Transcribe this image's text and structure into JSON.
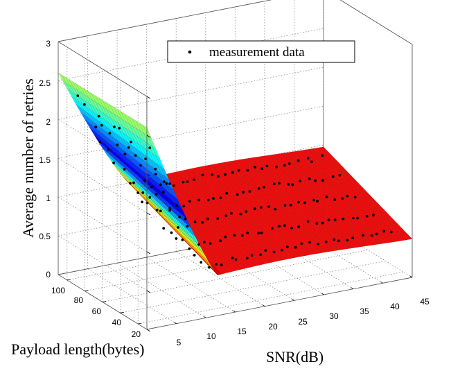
{
  "chart_data": {
    "type": "surface3d",
    "title": "",
    "zlabel": "Average number of retries",
    "xlabel": "SNR(dB)",
    "ylabel": "Payload length(bytes)",
    "snr_ticks": [
      "5",
      "10",
      "15",
      "20",
      "25",
      "30",
      "35",
      "40",
      "45"
    ],
    "payload_ticks": [
      "20",
      "40",
      "60",
      "80",
      "100"
    ],
    "retry_ticks": [
      "0",
      "0.5",
      "1",
      "1.5",
      "2",
      "2.5",
      "3"
    ],
    "snr_range": [
      0,
      45
    ],
    "payload_range": [
      10,
      110
    ],
    "retry_range": [
      0,
      3
    ],
    "legend": {
      "label": "measurement data",
      "position": "top-right"
    },
    "surface_colormap": "jet",
    "surface_model": {
      "description": "retries fall steeply from about 2.6 at SNR 0 to a minimum near SNR 13, then flatten around 0.5-1.0 depending on payload",
      "corner_values": [
        {
          "snr": 0,
          "payload": 10,
          "retries": 2.6
        },
        {
          "snr": 12,
          "payload": 10,
          "retries": 0.52
        },
        {
          "snr": 45,
          "payload": 10,
          "retries": 0.52
        },
        {
          "snr": 12,
          "payload": 110,
          "retries": 1.0
        },
        {
          "snr": 45,
          "payload": 110,
          "retries": 1.0
        }
      ]
    },
    "measurement_payloads": [
      20,
      40,
      60,
      80,
      100
    ],
    "measurement_snr_range": [
      2,
      43
    ]
  }
}
